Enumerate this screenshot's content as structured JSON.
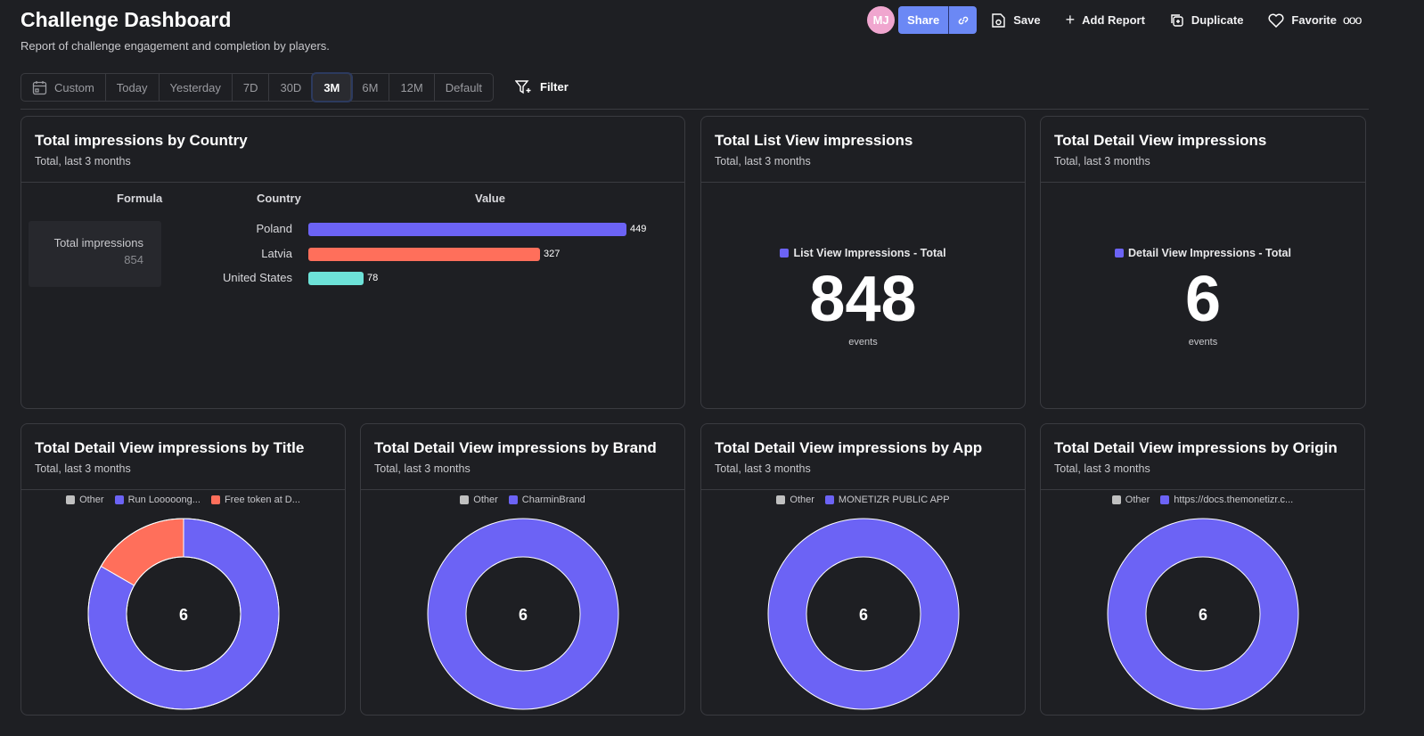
{
  "header": {
    "title": "Challenge Dashboard",
    "subtitle": "Report of challenge engagement and completion by players.",
    "avatar": "MJ",
    "share": "Share",
    "save": "Save",
    "add_report": "Add Report",
    "duplicate": "Duplicate",
    "favorite": "Favorite",
    "more": "ooo"
  },
  "range": {
    "items": [
      "Custom",
      "Today",
      "Yesterday",
      "7D",
      "30D",
      "3M",
      "6M",
      "12M",
      "Default"
    ],
    "active": "3M",
    "filter": "Filter"
  },
  "colors": {
    "purple": "#6c63f5",
    "red": "#ff6f5b",
    "teal": "#6de2d8",
    "gray": "#c0c0c0"
  },
  "country_card": {
    "title": "Total impressions by Country",
    "subtitle": "Total, last 3 months",
    "col_formula": "Formula",
    "col_country": "Country",
    "col_value": "Value",
    "formula_label": "Total impressions",
    "formula_value": "854",
    "rows": [
      {
        "country": "Poland",
        "value": 449,
        "label": "449",
        "color": "#6c63f5"
      },
      {
        "country": "Latvia",
        "value": 327,
        "label": "327",
        "color": "#ff6f5b"
      },
      {
        "country": "United States",
        "value": 78,
        "label": "78",
        "color": "#6de2d8"
      }
    ]
  },
  "list_card": {
    "title": "Total List View impressions",
    "subtitle": "Total, last 3 months",
    "legend": "List View Impressions - Total",
    "value": "848",
    "unit": "events"
  },
  "detail_card": {
    "title": "Total Detail View impressions",
    "subtitle": "Total, last 3 months",
    "legend": "Detail View Impressions - Total",
    "value": "6",
    "unit": "events"
  },
  "pies": [
    {
      "title": "Total Detail View impressions by Title",
      "subtitle": "Total, last 3 months",
      "total": "6",
      "legend": [
        {
          "label": "Other",
          "color": "#c0c0c0"
        },
        {
          "label": "Run Looooong...",
          "color": "#6c63f5"
        },
        {
          "label": "Free token at D...",
          "color": "#ff6f5b"
        }
      ],
      "slices": [
        {
          "value": 5,
          "color": "#6c63f5"
        },
        {
          "value": 1,
          "color": "#ff6f5b"
        }
      ]
    },
    {
      "title": "Total Detail View impressions by Brand",
      "subtitle": "Total, last 3 months",
      "total": "6",
      "legend": [
        {
          "label": "Other",
          "color": "#c0c0c0"
        },
        {
          "label": "CharminBrand",
          "color": "#6c63f5"
        }
      ],
      "slices": [
        {
          "value": 6,
          "color": "#6c63f5"
        }
      ]
    },
    {
      "title": "Total Detail View impressions by App",
      "subtitle": "Total, last 3 months",
      "total": "6",
      "legend": [
        {
          "label": "Other",
          "color": "#c0c0c0"
        },
        {
          "label": "MONETIZR PUBLIC APP",
          "color": "#6c63f5"
        }
      ],
      "slices": [
        {
          "value": 6,
          "color": "#6c63f5"
        }
      ]
    },
    {
      "title": "Total Detail View impressions by Origin",
      "subtitle": "Total, last 3 months",
      "total": "6",
      "legend": [
        {
          "label": "Other",
          "color": "#c0c0c0"
        },
        {
          "label": "https://docs.themonetizr.c...",
          "color": "#6c63f5"
        }
      ],
      "slices": [
        {
          "value": 6,
          "color": "#6c63f5"
        }
      ]
    }
  ]
}
